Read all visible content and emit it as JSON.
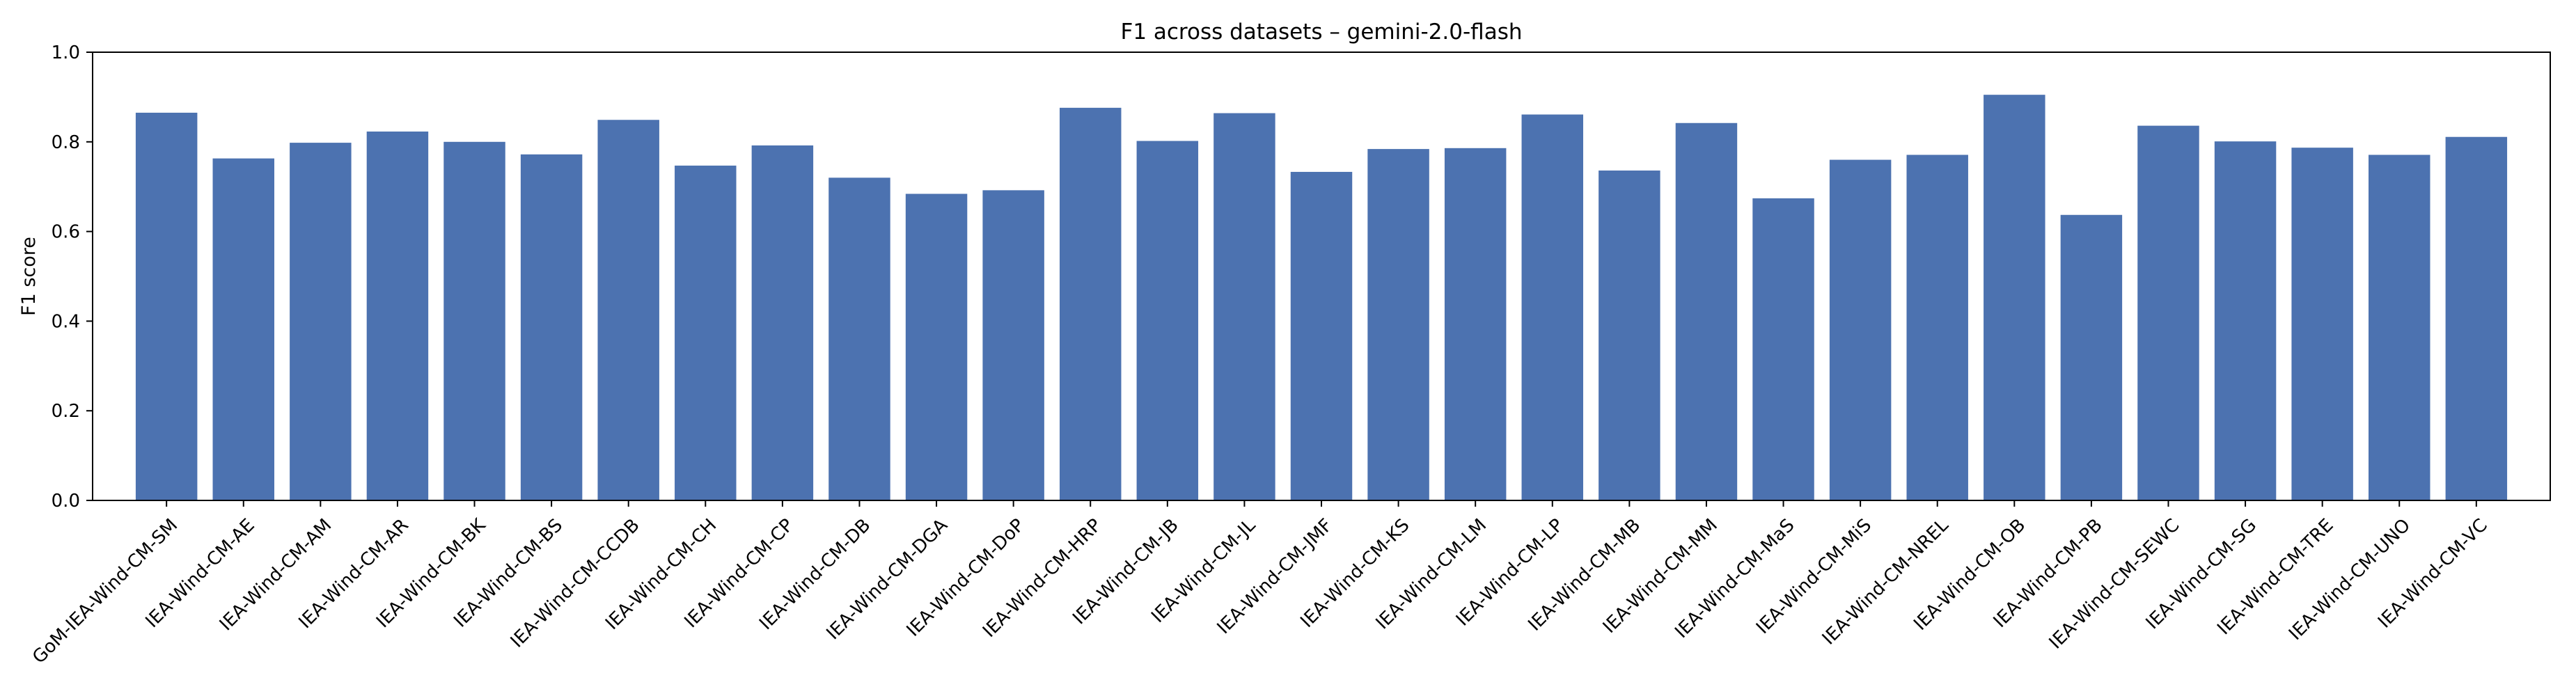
{
  "chart_data": {
    "type": "bar",
    "title": "F1 across datasets – gemini-2.0-flash",
    "xlabel": "",
    "ylabel": "F1 score",
    "ylim": [
      0.0,
      1.0
    ],
    "yticks": [
      0.0,
      0.2,
      0.4,
      0.6,
      0.8,
      1.0
    ],
    "ytick_labels": [
      "0.0",
      "0.2",
      "0.4",
      "0.6",
      "0.8",
      "1.0"
    ],
    "grid": false,
    "legend": "none",
    "bar_color": "#4c72b0",
    "categories": [
      "GoM-IEA-Wind-CM-SM",
      "IEA-Wind-CM-AE",
      "IEA-Wind-CM-AM",
      "IEA-Wind-CM-AR",
      "IEA-Wind-CM-BK",
      "IEA-Wind-CM-BS",
      "IEA-Wind-CM-CCDB",
      "IEA-Wind-CM-CH",
      "IEA-Wind-CM-CP",
      "IEA-Wind-CM-DB",
      "IEA-Wind-CM-DGA",
      "IEA-Wind-CM-DoP",
      "IEA-Wind-CM-HRP",
      "IEA-Wind-CM-JB",
      "IEA-Wind-CM-JL",
      "IEA-Wind-CM-JMF",
      "IEA-Wind-CM-KS",
      "IEA-Wind-CM-LM",
      "IEA-Wind-CM-LP",
      "IEA-Wind-CM-MB",
      "IEA-Wind-CM-MM",
      "IEA-Wind-CM-MaS",
      "IEA-Wind-CM-MiS",
      "IEA-Wind-CM-NREL",
      "IEA-Wind-CM-OB",
      "IEA-Wind-CM-PB",
      "IEA-Wind-CM-SEWC",
      "IEA-Wind-CM-SG",
      "IEA-Wind-CM-TRE",
      "IEA-Wind-CM-UNO",
      "IEA-Wind-CM-VC"
    ],
    "values": [
      0.865,
      0.763,
      0.798,
      0.823,
      0.8,
      0.772,
      0.849,
      0.747,
      0.792,
      0.72,
      0.684,
      0.692,
      0.876,
      0.802,
      0.864,
      0.733,
      0.784,
      0.786,
      0.861,
      0.736,
      0.842,
      0.674,
      0.76,
      0.771,
      0.905,
      0.637,
      0.836,
      0.801,
      0.787,
      0.771,
      0.811
    ]
  }
}
